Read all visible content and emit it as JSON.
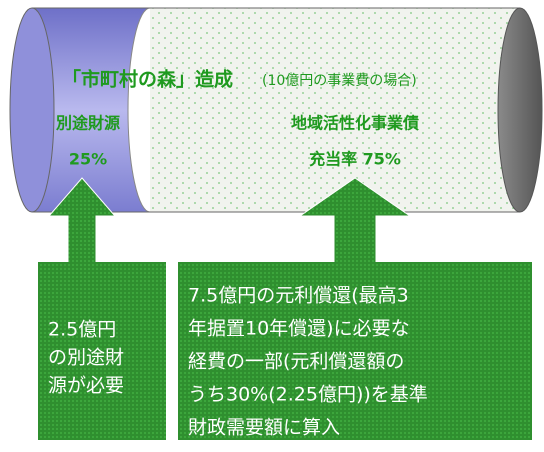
{
  "title": {
    "main": "「市町村の森」造成",
    "note": "(10億円の事業費の場合)"
  },
  "segments": [
    {
      "label": "別途財源",
      "share": "25%"
    },
    {
      "label": "地域活性化事業債",
      "share": "充当率 75%"
    }
  ],
  "boxes": [
    {
      "lines": [
        "2.5億円",
        "の別途財",
        "源が必要"
      ]
    },
    {
      "lines": [
        "7.5億円の元利償還(最高3",
        "年据置10年償還)に必要な",
        "経費の一部(元利償還額の",
        "うち30%(2.25億円))を基準",
        "財政需要額に算入"
      ]
    }
  ]
}
